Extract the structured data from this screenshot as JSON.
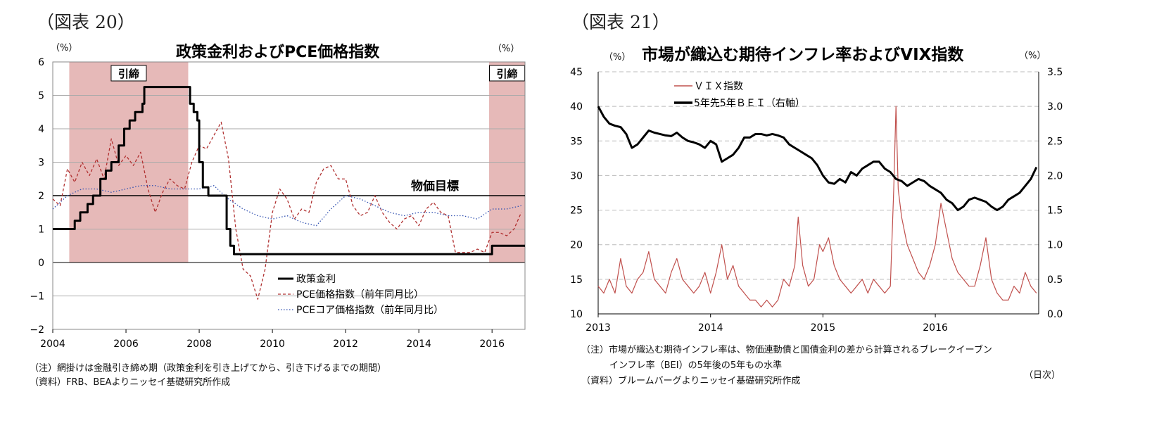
{
  "left": {
    "fig_label": "（図表 20）",
    "title": "政策金利およびPCE価格指数",
    "unit_left": "（%）",
    "unit_right": "（%）",
    "notes": [
      "（注）網掛けは金融引き締め期（政策金利を引き上げてから、引き下げるまでの期間）",
      "（資料）FRB、BEAよりニッセイ基礎研究所作成"
    ]
  },
  "right": {
    "fig_label": "（図表 21）",
    "title": "市場が織込む期待インフレ率およびVIX指数",
    "unit_left": "（%）",
    "unit_right": "（%）",
    "notes": [
      "（注）市場が織込む期待インフレ率は、物価連動債と国債金利の差から計算されるブレークイーブン",
      "インフレ率（BEI）の5年後の5年もの水準",
      "（資料）ブルームバーグよりニッセイ基礎研究所作成"
    ],
    "xunit": "（日次）"
  },
  "chart_data": [
    {
      "type": "line",
      "title": "政策金利およびPCE価格指数",
      "ylim": [
        -2,
        6
      ],
      "yticks": [
        -2,
        -1,
        0,
        1,
        2,
        3,
        4,
        5,
        6
      ],
      "xlim": [
        2004,
        2016.9
      ],
      "xticks": [
        2004,
        2006,
        2008,
        2010,
        2012,
        2014,
        2016
      ],
      "grid": "horizontal",
      "legend_position": "bottom-right",
      "shaded_regions": [
        {
          "label": "引締",
          "start": 2004.45,
          "end": 2007.7
        },
        {
          "label": "引締",
          "start": 2015.92,
          "end": 2016.9
        }
      ],
      "reference_line": {
        "label": "物価目標",
        "value": 2
      },
      "series": [
        {
          "name": "政策金利",
          "style": "solid-thick",
          "color": "#000000",
          "x": [
            2004.0,
            2004.45,
            2004.6,
            2004.75,
            2004.95,
            2005.1,
            2005.3,
            2005.45,
            2005.6,
            2005.8,
            2005.95,
            2006.1,
            2006.25,
            2006.45,
            2006.5,
            2007.7,
            2007.75,
            2007.85,
            2007.95,
            2008.0,
            2008.1,
            2008.25,
            2008.35,
            2008.75,
            2008.85,
            2008.95,
            2016.0,
            2016.9
          ],
          "y": [
            1.0,
            1.0,
            1.25,
            1.5,
            1.75,
            2.0,
            2.5,
            2.75,
            3.0,
            3.5,
            4.0,
            4.25,
            4.5,
            4.75,
            5.25,
            5.25,
            4.75,
            4.5,
            4.25,
            3.0,
            2.25,
            2.0,
            2.0,
            1.0,
            0.5,
            0.25,
            0.5,
            0.5
          ]
        },
        {
          "name": "PCE価格指数（前年同月比）",
          "style": "dashed",
          "color": "#b03030",
          "x": [
            2004.0,
            2004.2,
            2004.4,
            2004.6,
            2004.8,
            2005.0,
            2005.2,
            2005.4,
            2005.6,
            2005.8,
            2006.0,
            2006.2,
            2006.4,
            2006.6,
            2006.8,
            2007.0,
            2007.2,
            2007.4,
            2007.6,
            2007.8,
            2008.0,
            2008.2,
            2008.4,
            2008.6,
            2008.8,
            2009.0,
            2009.2,
            2009.4,
            2009.6,
            2009.8,
            2010.0,
            2010.2,
            2010.4,
            2010.6,
            2010.8,
            2011.0,
            2011.2,
            2011.4,
            2011.6,
            2011.8,
            2012.0,
            2012.2,
            2012.4,
            2012.6,
            2012.8,
            2013.0,
            2013.2,
            2013.4,
            2013.6,
            2013.8,
            2014.0,
            2014.2,
            2014.4,
            2014.6,
            2014.8,
            2015.0,
            2015.2,
            2015.4,
            2015.6,
            2015.8,
            2016.0,
            2016.2,
            2016.4,
            2016.6,
            2016.8
          ],
          "y": [
            1.9,
            1.7,
            2.8,
            2.4,
            3.0,
            2.6,
            3.1,
            2.5,
            3.7,
            2.9,
            3.2,
            2.9,
            3.3,
            2.2,
            1.5,
            2.1,
            2.5,
            2.3,
            2.2,
            3.0,
            3.5,
            3.4,
            3.8,
            4.2,
            3.1,
            1.0,
            -0.2,
            -0.4,
            -1.1,
            -0.2,
            1.5,
            2.2,
            1.9,
            1.3,
            1.6,
            1.5,
            2.4,
            2.8,
            2.9,
            2.5,
            2.5,
            1.7,
            1.4,
            1.5,
            2.0,
            1.5,
            1.2,
            1.0,
            1.3,
            1.4,
            1.1,
            1.6,
            1.8,
            1.5,
            1.4,
            0.3,
            0.3,
            0.3,
            0.4,
            0.3,
            0.9,
            0.9,
            0.8,
            1.0,
            1.5
          ]
        },
        {
          "name": "PCEコア価格指数（前年同月比）",
          "style": "dotted",
          "color": "#3050b0",
          "x": [
            2004.0,
            2004.4,
            2004.8,
            2005.2,
            2005.6,
            2006.0,
            2006.4,
            2006.8,
            2007.2,
            2007.6,
            2008.0,
            2008.4,
            2008.8,
            2009.2,
            2009.6,
            2010.0,
            2010.4,
            2010.8,
            2011.2,
            2011.6,
            2012.0,
            2012.4,
            2012.8,
            2013.2,
            2013.6,
            2014.0,
            2014.4,
            2014.8,
            2015.2,
            2015.6,
            2016.0,
            2016.4,
            2016.8
          ],
          "y": [
            1.6,
            2.0,
            2.2,
            2.2,
            2.1,
            2.2,
            2.3,
            2.3,
            2.2,
            2.2,
            2.2,
            2.3,
            1.9,
            1.6,
            1.4,
            1.3,
            1.4,
            1.2,
            1.1,
            1.6,
            2.0,
            1.9,
            1.7,
            1.5,
            1.4,
            1.5,
            1.5,
            1.4,
            1.4,
            1.3,
            1.6,
            1.6,
            1.7
          ]
        }
      ]
    },
    {
      "type": "line",
      "title": "市場が織込む期待インフレ率およびVIX指数",
      "ylim": [
        10,
        45
      ],
      "yticks": [
        10,
        15,
        20,
        25,
        30,
        35,
        40,
        45
      ],
      "y2lim": [
        0.0,
        3.5
      ],
      "y2ticks": [
        0.0,
        0.5,
        1.0,
        1.5,
        2.0,
        2.5,
        3.0,
        3.5
      ],
      "xlim": [
        2013,
        2016.92
      ],
      "xticks": [
        2013,
        2014,
        2015,
        2016
      ],
      "grid": "horizontal-dashed",
      "legend_position": "top-left",
      "series": [
        {
          "name": "ＶＩＸ指数",
          "axis": "left",
          "color": "#c0504d",
          "x": [
            2013.0,
            2013.05,
            2013.1,
            2013.15,
            2013.2,
            2013.25,
            2013.3,
            2013.35,
            2013.4,
            2013.45,
            2013.5,
            2013.55,
            2013.6,
            2013.65,
            2013.7,
            2013.75,
            2013.8,
            2013.85,
            2013.9,
            2013.95,
            2014.0,
            2014.05,
            2014.1,
            2014.15,
            2014.2,
            2014.25,
            2014.3,
            2014.35,
            2014.4,
            2014.45,
            2014.5,
            2014.55,
            2014.6,
            2014.65,
            2014.7,
            2014.75,
            2014.78,
            2014.82,
            2014.87,
            2014.92,
            2014.97,
            2015.0,
            2015.05,
            2015.1,
            2015.15,
            2015.2,
            2015.25,
            2015.3,
            2015.35,
            2015.4,
            2015.45,
            2015.5,
            2015.55,
            2015.6,
            2015.63,
            2015.65,
            2015.67,
            2015.7,
            2015.75,
            2015.8,
            2015.85,
            2015.9,
            2015.95,
            2016.0,
            2016.05,
            2016.1,
            2016.15,
            2016.2,
            2016.25,
            2016.3,
            2016.35,
            2016.4,
            2016.45,
            2016.5,
            2016.55,
            2016.6,
            2016.65,
            2016.7,
            2016.75,
            2016.8,
            2016.85,
            2016.9
          ],
          "y": [
            14,
            13,
            15,
            13,
            18,
            14,
            13,
            15,
            16,
            19,
            15,
            14,
            13,
            16,
            18,
            15,
            14,
            13,
            14,
            16,
            13,
            16,
            20,
            15,
            17,
            14,
            13,
            12,
            12,
            11,
            12,
            11,
            12,
            15,
            14,
            17,
            24,
            17,
            14,
            15,
            20,
            19,
            21,
            17,
            15,
            14,
            13,
            14,
            15,
            13,
            15,
            14,
            13,
            14,
            28,
            40,
            28,
            24,
            20,
            18,
            16,
            15,
            17,
            20,
            26,
            22,
            18,
            16,
            15,
            14,
            14,
            17,
            21,
            15,
            13,
            12,
            12,
            14,
            13,
            16,
            14,
            13
          ]
        },
        {
          "name": "5年先5年ＢＥＩ（右軸）",
          "axis": "right",
          "color": "#000000",
          "x": [
            2013.0,
            2013.05,
            2013.1,
            2013.15,
            2013.2,
            2013.25,
            2013.3,
            2013.35,
            2013.4,
            2013.45,
            2013.5,
            2013.55,
            2013.6,
            2013.65,
            2013.7,
            2013.75,
            2013.8,
            2013.85,
            2013.9,
            2013.95,
            2014.0,
            2014.05,
            2014.1,
            2014.15,
            2014.2,
            2014.25,
            2014.3,
            2014.35,
            2014.4,
            2014.45,
            2014.5,
            2014.55,
            2014.6,
            2014.65,
            2014.7,
            2014.75,
            2014.8,
            2014.85,
            2014.9,
            2014.95,
            2015.0,
            2015.05,
            2015.1,
            2015.15,
            2015.2,
            2015.25,
            2015.3,
            2015.35,
            2015.4,
            2015.45,
            2015.5,
            2015.55,
            2015.6,
            2015.65,
            2015.7,
            2015.75,
            2015.8,
            2015.85,
            2015.9,
            2015.95,
            2016.0,
            2016.05,
            2016.1,
            2016.15,
            2016.2,
            2016.25,
            2016.3,
            2016.35,
            2016.4,
            2016.45,
            2016.5,
            2016.55,
            2016.6,
            2016.65,
            2016.7,
            2016.75,
            2016.8,
            2016.85,
            2016.9
          ],
          "y": [
            3.0,
            2.85,
            2.75,
            2.72,
            2.7,
            2.6,
            2.4,
            2.45,
            2.55,
            2.65,
            2.62,
            2.6,
            2.58,
            2.57,
            2.62,
            2.55,
            2.5,
            2.48,
            2.45,
            2.4,
            2.5,
            2.45,
            2.2,
            2.25,
            2.3,
            2.4,
            2.55,
            2.55,
            2.6,
            2.6,
            2.58,
            2.6,
            2.58,
            2.55,
            2.45,
            2.4,
            2.35,
            2.3,
            2.25,
            2.15,
            2.0,
            1.9,
            1.88,
            1.95,
            1.9,
            2.05,
            2.0,
            2.1,
            2.15,
            2.2,
            2.2,
            2.1,
            2.05,
            1.95,
            1.92,
            1.85,
            1.9,
            1.95,
            1.92,
            1.85,
            1.8,
            1.75,
            1.65,
            1.6,
            1.5,
            1.55,
            1.65,
            1.68,
            1.65,
            1.62,
            1.55,
            1.5,
            1.55,
            1.65,
            1.7,
            1.75,
            1.85,
            1.95,
            2.12
          ]
        }
      ]
    }
  ]
}
